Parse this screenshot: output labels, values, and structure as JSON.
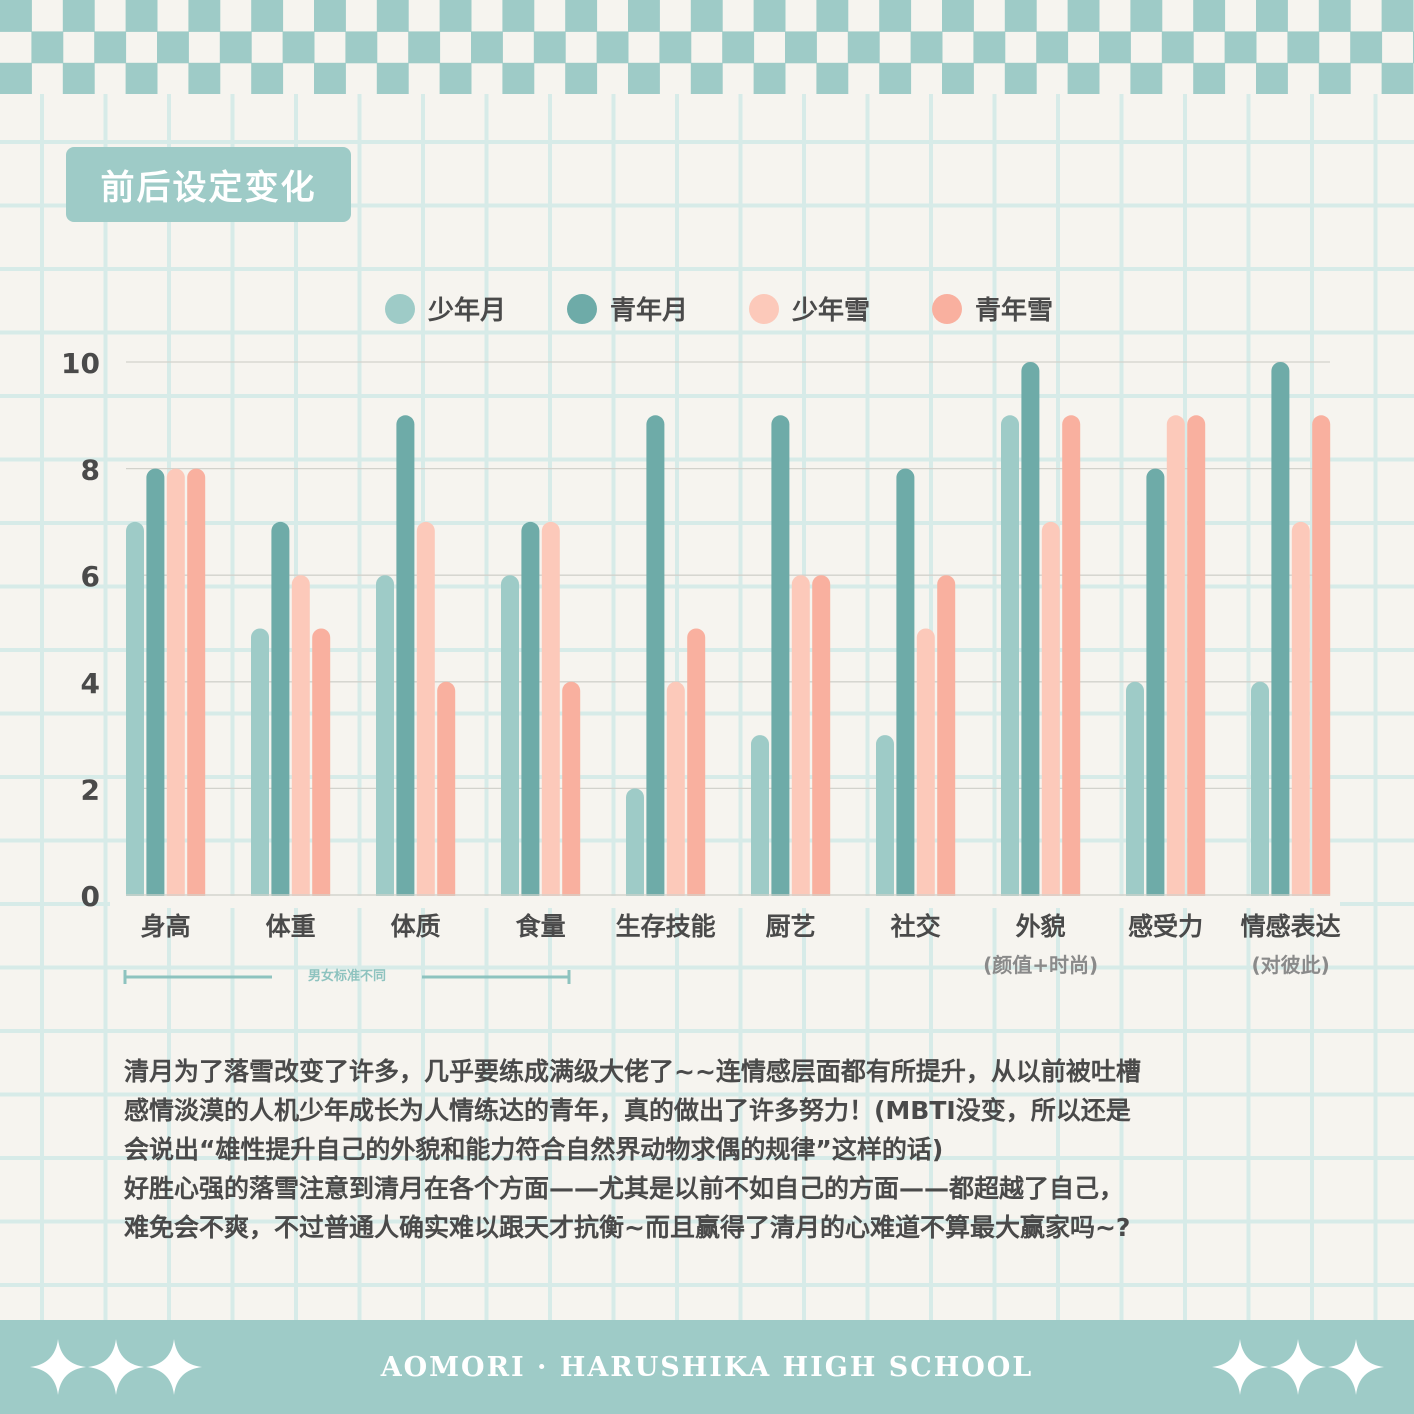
{
  "title": "前后设定变化",
  "chart_data": {
    "type": "bar",
    "categories": [
      "身高",
      "体重",
      "体质",
      "食量",
      "生存技能",
      "厨艺",
      "社交",
      "外貌",
      "感受力",
      "情感表达"
    ],
    "category_notes": [
      "",
      "",
      "",
      "",
      "",
      "",
      "",
      "(颜值+时尚)",
      "",
      "(对彼此)"
    ],
    "series": [
      {
        "name": "少年月",
        "color": "#9ecbc7",
        "values": [
          7,
          5,
          6,
          6,
          2,
          3,
          3,
          9,
          4,
          4
        ]
      },
      {
        "name": "青年月",
        "color": "#6eaba8",
        "values": [
          8,
          7,
          9,
          7,
          9,
          9,
          8,
          10,
          8,
          10
        ]
      },
      {
        "name": "少年雪",
        "color": "#fcc9ba",
        "values": [
          8,
          6,
          7,
          7,
          4,
          6,
          5,
          7,
          9,
          7
        ]
      },
      {
        "name": "青年雪",
        "color": "#f9b09f",
        "values": [
          8,
          5,
          4,
          4,
          5,
          6,
          6,
          9,
          9,
          9
        ]
      }
    ],
    "ylim": [
      0,
      10
    ],
    "yticks": [
      "0",
      "2",
      "4",
      "6",
      "8",
      "10"
    ],
    "legend_position": "top-center",
    "grid": true,
    "annotation": "男女标准不同"
  },
  "note_lines": [
    "清月为了落雪改变了许多，几乎要练成满级大佬了~~连情感层面都有所提升，从以前被吐槽",
    "感情淡漠的人机少年成长为人情练达的青年，真的做出了许多努力！(MBTI没变，所以还是",
    "会说出“雄性提升自己的外貌和能力符合自然界动物求偶的规律”这样的话)",
    "好胜心强的落雪注意到清月在各个方面——尤其是以前不如自己的方面——都超越了自己，",
    "难免会不爽，不过普通人确实难以跟天才抗衡~而且赢得了清月的心难道不算最大赢家吗~?"
  ],
  "footer": {
    "text": "AOMORI · HARUSHIKA HIGH SCHOOL",
    "star_icon": "four-point-star-icon",
    "colors": {
      "band": "#9ecbc7",
      "text": "#ffffff"
    }
  },
  "colors": {
    "background": "#f6f4ef",
    "grid_line": "#d7ebe8",
    "checker": "#9ecbc7"
  }
}
